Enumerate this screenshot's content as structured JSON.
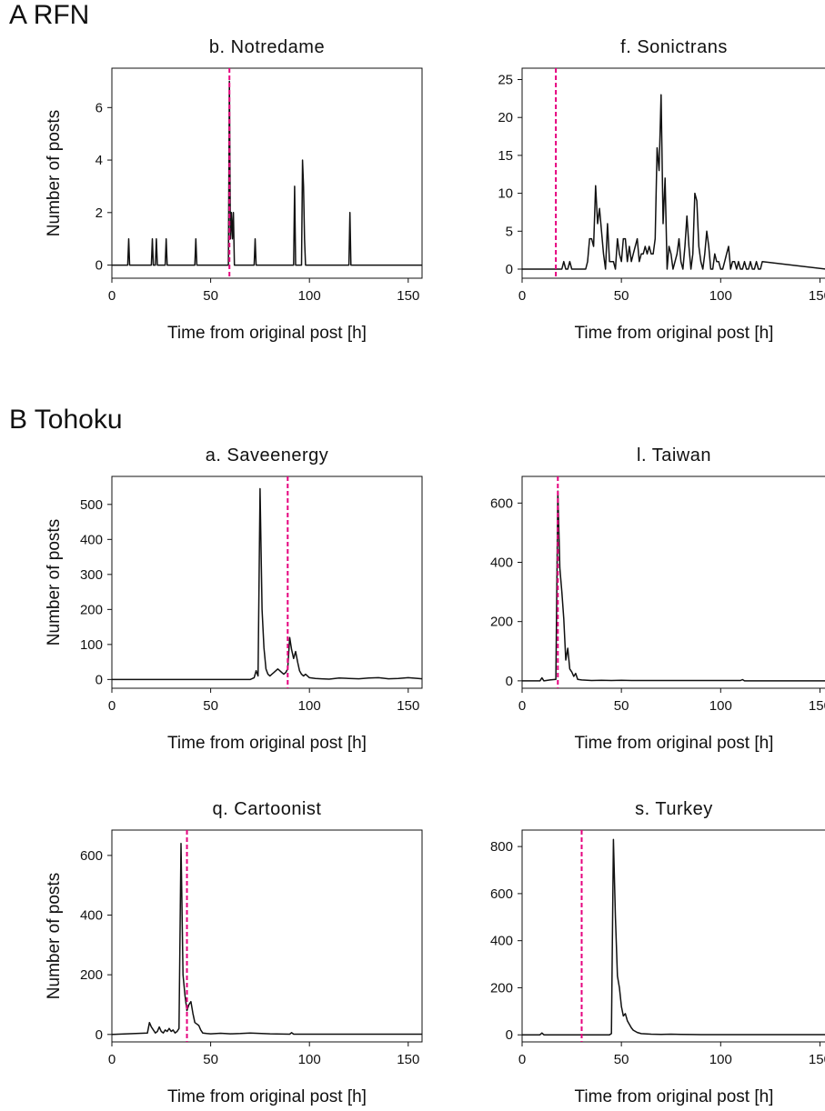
{
  "sections": [
    {
      "label": "A RFN"
    },
    {
      "label": "B Tohoku"
    }
  ],
  "colors": {
    "line": "#111111",
    "marker": "#e6007e",
    "axis": "#111111"
  },
  "chart_data": [
    {
      "type": "line",
      "title": "b. Notredame",
      "xlabel": "Time from original post [h]",
      "ylabel": "Number of posts",
      "xlim": [
        0,
        157
      ],
      "ylim": [
        -0.5,
        7.5
      ],
      "xticks": [
        0,
        50,
        100,
        150
      ],
      "yticks": [
        0,
        2,
        4,
        6
      ],
      "marker_x": 59.5,
      "series": [
        {
          "x": [
            0,
            8,
            8.5,
            9,
            20,
            20.5,
            21,
            22,
            22.5,
            23,
            27,
            27.5,
            28,
            42,
            42.5,
            43,
            59,
            59.5,
            60,
            60.5,
            61,
            61.5,
            62,
            72,
            72.5,
            73,
            92,
            92.5,
            93,
            96,
            96.5,
            97,
            97.5,
            98,
            120,
            120.5,
            121,
            157
          ],
          "y": [
            0,
            0,
            1,
            0,
            0,
            1,
            0,
            0,
            1,
            0,
            0,
            1,
            0,
            0,
            1,
            0,
            0,
            7,
            1,
            2,
            1,
            2,
            0,
            0,
            1,
            0,
            0,
            3,
            0,
            0,
            4,
            3,
            1,
            0,
            0,
            2,
            0,
            0
          ]
        }
      ]
    },
    {
      "type": "line",
      "title": "f. Sonictrans",
      "xlabel": "Time from original post [h]",
      "ylabel": "",
      "xlim": [
        0,
        153
      ],
      "ylim": [
        -1.2,
        26.5
      ],
      "xticks": [
        0,
        50,
        100,
        150
      ],
      "yticks": [
        0,
        5,
        10,
        15,
        20,
        25
      ],
      "marker_x": 17,
      "series": [
        {
          "x": [
            0,
            20,
            21,
            22,
            23,
            24,
            25,
            32,
            33,
            34,
            35,
            36,
            37,
            38,
            39,
            40,
            41,
            42,
            43,
            44,
            45,
            46,
            47,
            48,
            49,
            50,
            51,
            52,
            53,
            54,
            55,
            56,
            57,
            58,
            59,
            60,
            61,
            62,
            63,
            64,
            65,
            66,
            67,
            68,
            69,
            70,
            71,
            72,
            73,
            74,
            75,
            76,
            77,
            78,
            79,
            80,
            81,
            82,
            83,
            84,
            85,
            86,
            87,
            88,
            89,
            90,
            91,
            92,
            93,
            94,
            95,
            96,
            97,
            98,
            99,
            100,
            101,
            102,
            103,
            104,
            105,
            106,
            107,
            108,
            109,
            110,
            111,
            112,
            113,
            114,
            115,
            116,
            117,
            118,
            119,
            120,
            121,
            153
          ],
          "y": [
            0,
            0,
            1,
            0,
            0,
            1,
            0,
            0,
            1,
            4,
            4,
            3,
            11,
            6,
            8,
            5,
            2,
            0,
            6,
            1,
            1,
            1,
            0,
            4,
            2,
            1,
            4,
            4,
            1,
            3,
            1,
            2,
            3,
            4,
            1,
            2,
            2,
            3,
            2,
            3,
            2,
            2,
            4,
            16,
            13,
            23,
            6,
            12,
            0,
            3,
            2,
            0,
            1,
            2,
            4,
            1,
            0,
            3,
            7,
            3,
            0,
            2,
            10,
            9,
            3,
            1,
            0,
            2,
            5,
            3,
            0,
            0,
            2,
            1,
            1,
            0,
            0,
            1,
            2,
            3,
            0,
            1,
            1,
            0,
            1,
            0,
            0,
            1,
            0,
            0,
            1,
            0,
            0,
            1,
            0,
            0,
            1,
            0
          ]
        }
      ]
    },
    {
      "type": "line",
      "title": "a. Saveenergy",
      "xlabel": "Time from original post [h]",
      "ylabel": "Number of posts",
      "xlim": [
        0,
        157
      ],
      "ylim": [
        -25,
        580
      ],
      "xticks": [
        0,
        50,
        100,
        150
      ],
      "yticks": [
        0,
        100,
        200,
        300,
        400,
        500
      ],
      "marker_x": 89,
      "series": [
        {
          "x": [
            0,
            70,
            72,
            73,
            74,
            75,
            76,
            77,
            78,
            79,
            80,
            81,
            82,
            83,
            84,
            85,
            86,
            87,
            88,
            89,
            90,
            91,
            92,
            93,
            94,
            95,
            96,
            97,
            98,
            100,
            103,
            106,
            110,
            115,
            120,
            125,
            130,
            135,
            140,
            145,
            150,
            155,
            157
          ],
          "y": [
            0,
            0,
            5,
            25,
            10,
            545,
            200,
            90,
            30,
            15,
            10,
            15,
            20,
            25,
            30,
            25,
            20,
            15,
            20,
            30,
            120,
            85,
            60,
            80,
            50,
            25,
            15,
            10,
            15,
            5,
            3,
            2,
            1,
            4,
            3,
            2,
            4,
            5,
            2,
            3,
            5,
            3,
            2
          ]
        }
      ]
    },
    {
      "type": "line",
      "title": "l. Taiwan",
      "xlabel": "Time from original post [h]",
      "ylabel": "",
      "xlim": [
        0,
        153
      ],
      "ylim": [
        -25,
        690
      ],
      "xticks": [
        0,
        50,
        100,
        150
      ],
      "yticks": [
        0,
        200,
        400,
        600
      ],
      "marker_x": 18,
      "series": [
        {
          "x": [
            0,
            9,
            10,
            11,
            14,
            17,
            18,
            19,
            20,
            21,
            22,
            23,
            24,
            25,
            26,
            27,
            28,
            30,
            35,
            40,
            45,
            50,
            55,
            60,
            70,
            80,
            90,
            100,
            110,
            111,
            112,
            153
          ],
          "y": [
            0,
            0,
            10,
            0,
            3,
            5,
            640,
            380,
            300,
            210,
            70,
            110,
            40,
            30,
            15,
            25,
            5,
            3,
            1,
            2,
            1,
            2,
            1,
            1,
            1,
            1,
            1,
            1,
            1,
            4,
            0,
            0
          ]
        }
      ]
    },
    {
      "type": "line",
      "title": "q. Cartoonist",
      "xlabel": "Time from original post [h]",
      "ylabel": "Number of posts",
      "xlim": [
        0,
        157
      ],
      "ylim": [
        -25,
        685
      ],
      "xticks": [
        0,
        50,
        100,
        150
      ],
      "yticks": [
        0,
        200,
        400,
        600
      ],
      "marker_x": 38,
      "series": [
        {
          "x": [
            0,
            18,
            19,
            20,
            22,
            23,
            24,
            25,
            26,
            27,
            28,
            29,
            30,
            31,
            32,
            33,
            34,
            35,
            36,
            37,
            38,
            39,
            40,
            41,
            42,
            43,
            44,
            45,
            46,
            48,
            50,
            55,
            60,
            65,
            70,
            80,
            90,
            91,
            92,
            100,
            110,
            120,
            130,
            140,
            150,
            157
          ],
          "y": [
            0,
            5,
            40,
            25,
            5,
            10,
            25,
            10,
            5,
            15,
            10,
            20,
            10,
            15,
            5,
            10,
            20,
            640,
            200,
            130,
            80,
            100,
            110,
            70,
            40,
            35,
            30,
            15,
            5,
            3,
            2,
            4,
            2,
            3,
            5,
            2,
            1,
            6,
            1,
            1,
            1,
            1,
            1,
            1,
            1,
            1
          ]
        }
      ]
    },
    {
      "type": "line",
      "title": "s. Turkey",
      "xlabel": "Time from original post [h]",
      "ylabel": "",
      "xlim": [
        0,
        153
      ],
      "ylim": [
        -30,
        870
      ],
      "xticks": [
        0,
        50,
        100,
        150
      ],
      "yticks": [
        0,
        200,
        400,
        600,
        800
      ],
      "marker_x": 30,
      "series": [
        {
          "x": [
            0,
            9,
            10,
            11,
            20,
            44,
            45,
            46,
            47,
            48,
            49,
            50,
            51,
            52,
            53,
            54,
            55,
            56,
            58,
            60,
            65,
            70,
            75,
            80,
            90,
            100,
            110,
            120,
            130,
            140,
            150,
            153
          ],
          "y": [
            0,
            0,
            8,
            0,
            0,
            0,
            5,
            830,
            500,
            250,
            200,
            120,
            80,
            90,
            60,
            45,
            30,
            20,
            10,
            5,
            3,
            2,
            3,
            2,
            1,
            1,
            1,
            1,
            1,
            1,
            1,
            1
          ]
        }
      ]
    }
  ]
}
